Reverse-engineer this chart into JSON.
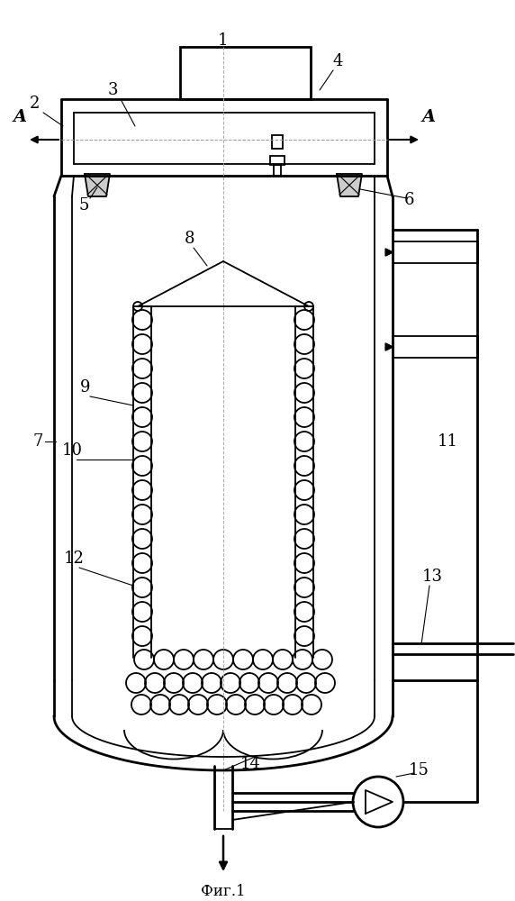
{
  "title": "Фиг.1",
  "bg_color": "#ffffff",
  "line_color": "#000000",
  "lw": 1.3,
  "lw2": 2.0
}
